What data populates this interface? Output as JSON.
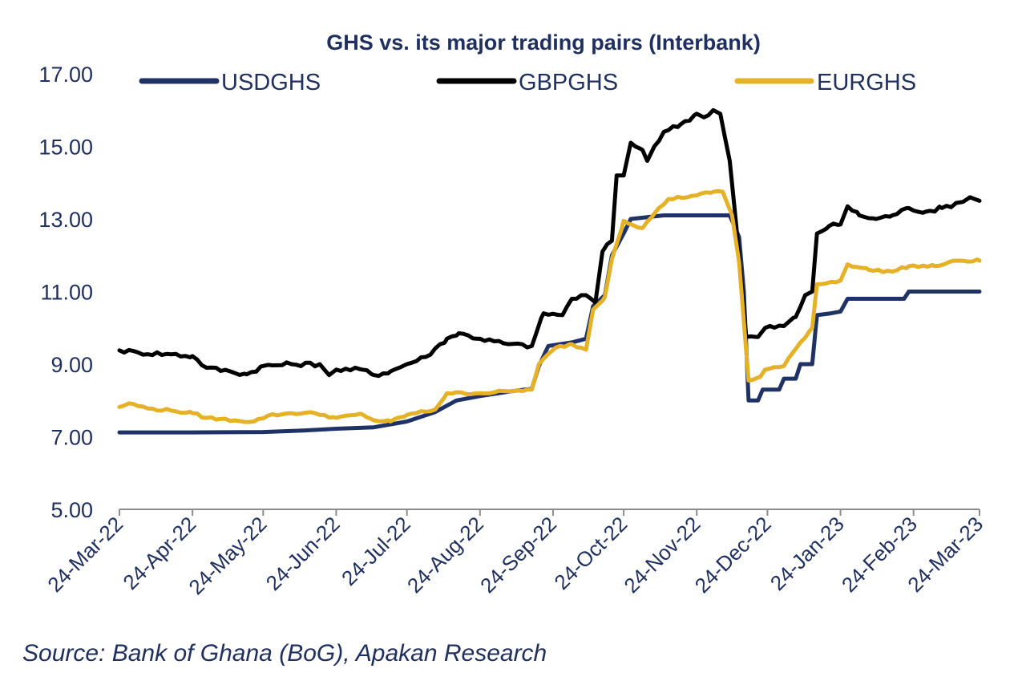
{
  "chart_data": {
    "type": "line",
    "title": "GHS vs. its major trading pairs (Interbank)",
    "xlabel": "",
    "ylabel": "",
    "ylim": [
      5.0,
      17.0
    ],
    "ytick_values": [
      5,
      7,
      9,
      11,
      13,
      15,
      17
    ],
    "ytick_labels": [
      "5.00",
      "7.00",
      "9.00",
      "11.00",
      "13.00",
      "15.00",
      "17.00"
    ],
    "xlim": [
      "2022-03-24",
      "2023-03-24"
    ],
    "xtick_dates": [
      "2022-03-24",
      "2022-04-24",
      "2022-05-24",
      "2022-06-24",
      "2022-07-24",
      "2022-08-24",
      "2022-09-24",
      "2022-10-24",
      "2022-11-24",
      "2022-12-24",
      "2023-01-24",
      "2023-02-24",
      "2023-03-24"
    ],
    "xtick_labels": [
      "24-Mar-22",
      "24-Apr-22",
      "24-May-22",
      "24-Jun-22",
      "24-Jul-22",
      "24-Aug-22",
      "24-Sep-22",
      "24-Oct-22",
      "24-Nov-22",
      "24-Dec-22",
      "24-Jan-23",
      "24-Feb-23",
      "24-Mar-23"
    ],
    "grid": false,
    "legend_position": "top",
    "series": [
      {
        "name": "USDGHS",
        "color": "#1f3266",
        "points": [
          [
            "2022-03-24",
            7.12
          ],
          [
            "2022-04-24",
            7.12
          ],
          [
            "2022-05-24",
            7.13
          ],
          [
            "2022-06-10",
            7.17
          ],
          [
            "2022-06-24",
            7.22
          ],
          [
            "2022-07-10",
            7.26
          ],
          [
            "2022-07-24",
            7.42
          ],
          [
            "2022-08-05",
            7.68
          ],
          [
            "2022-08-14",
            8.0
          ],
          [
            "2022-08-24",
            8.12
          ],
          [
            "2022-09-05",
            8.24
          ],
          [
            "2022-09-12",
            8.3
          ],
          [
            "2022-09-15",
            8.32
          ],
          [
            "2022-09-18",
            8.95
          ],
          [
            "2022-09-22",
            9.5
          ],
          [
            "2022-10-02",
            9.6
          ],
          [
            "2022-10-08",
            9.7
          ],
          [
            "2022-10-11",
            10.6
          ],
          [
            "2022-10-16",
            10.9
          ],
          [
            "2022-10-19",
            12.0
          ],
          [
            "2022-10-24",
            12.6
          ],
          [
            "2022-10-27",
            13.0
          ],
          [
            "2022-11-10",
            13.1
          ],
          [
            "2022-11-24",
            13.1
          ],
          [
            "2022-12-08",
            13.1
          ],
          [
            "2022-12-12",
            12.5
          ],
          [
            "2022-12-14",
            11.0
          ],
          [
            "2022-12-16",
            8.0
          ],
          [
            "2022-12-20",
            8.0
          ],
          [
            "2022-12-22",
            8.3
          ],
          [
            "2022-12-29",
            8.3
          ],
          [
            "2022-12-31",
            8.6
          ],
          [
            "2023-01-05",
            8.6
          ],
          [
            "2023-01-07",
            9.0
          ],
          [
            "2023-01-12",
            9.0
          ],
          [
            "2023-01-14",
            10.35
          ],
          [
            "2023-01-20",
            10.4
          ],
          [
            "2023-01-24",
            10.45
          ],
          [
            "2023-01-27",
            10.8
          ],
          [
            "2023-02-20",
            10.8
          ],
          [
            "2023-02-22",
            11.0
          ],
          [
            "2023-03-24",
            11.0
          ]
        ]
      },
      {
        "name": "GBPGHS",
        "color": "#000000",
        "points": [
          [
            "2022-03-24",
            9.38
          ],
          [
            "2022-04-01",
            9.32
          ],
          [
            "2022-04-15",
            9.27
          ],
          [
            "2022-04-24",
            9.22
          ],
          [
            "2022-04-30",
            8.9
          ],
          [
            "2022-05-10",
            8.8
          ],
          [
            "2022-05-17",
            8.72
          ],
          [
            "2022-05-24",
            8.95
          ],
          [
            "2022-06-05",
            9.0
          ],
          [
            "2022-06-17",
            9.0
          ],
          [
            "2022-06-21",
            8.7
          ],
          [
            "2022-06-24",
            8.85
          ],
          [
            "2022-07-05",
            8.85
          ],
          [
            "2022-07-10",
            8.7
          ],
          [
            "2022-07-17",
            8.8
          ],
          [
            "2022-07-24",
            9.0
          ],
          [
            "2022-08-01",
            9.2
          ],
          [
            "2022-08-10",
            9.7
          ],
          [
            "2022-08-15",
            9.85
          ],
          [
            "2022-08-24",
            9.7
          ],
          [
            "2022-09-05",
            9.55
          ],
          [
            "2022-09-15",
            9.5
          ],
          [
            "2022-09-20",
            10.4
          ],
          [
            "2022-09-28",
            10.35
          ],
          [
            "2022-10-02",
            10.8
          ],
          [
            "2022-10-08",
            10.9
          ],
          [
            "2022-10-12",
            10.7
          ],
          [
            "2022-10-15",
            12.1
          ],
          [
            "2022-10-19",
            12.4
          ],
          [
            "2022-10-21",
            14.2
          ],
          [
            "2022-10-24",
            14.2
          ],
          [
            "2022-10-27",
            15.1
          ],
          [
            "2022-11-01",
            14.9
          ],
          [
            "2022-11-03",
            14.6
          ],
          [
            "2022-11-06",
            15.0
          ],
          [
            "2022-11-10",
            15.4
          ],
          [
            "2022-11-17",
            15.6
          ],
          [
            "2022-11-24",
            15.9
          ],
          [
            "2022-11-27",
            15.8
          ],
          [
            "2022-12-01",
            16.0
          ],
          [
            "2022-12-04",
            15.9
          ],
          [
            "2022-12-08",
            14.6
          ],
          [
            "2022-12-12",
            12.0
          ],
          [
            "2022-12-15",
            9.75
          ],
          [
            "2022-12-20",
            9.75
          ],
          [
            "2022-12-23",
            10.0
          ],
          [
            "2022-12-31",
            10.05
          ],
          [
            "2023-01-05",
            10.3
          ],
          [
            "2023-01-09",
            10.9
          ],
          [
            "2023-01-12",
            11.0
          ],
          [
            "2023-01-14",
            12.6
          ],
          [
            "2023-01-19",
            12.8
          ],
          [
            "2023-01-24",
            12.85
          ],
          [
            "2023-01-27",
            13.35
          ],
          [
            "2023-02-01",
            13.1
          ],
          [
            "2023-02-08",
            13.0
          ],
          [
            "2023-02-15",
            13.1
          ],
          [
            "2023-02-22",
            13.3
          ],
          [
            "2023-03-01",
            13.2
          ],
          [
            "2023-03-08",
            13.3
          ],
          [
            "2023-03-15",
            13.45
          ],
          [
            "2023-03-20",
            13.6
          ],
          [
            "2023-03-24",
            13.5
          ]
        ]
      },
      {
        "name": "EURGHS",
        "color": "#e5b227",
        "points": [
          [
            "2022-03-24",
            7.82
          ],
          [
            "2022-03-28",
            7.92
          ],
          [
            "2022-04-05",
            7.78
          ],
          [
            "2022-04-15",
            7.72
          ],
          [
            "2022-04-24",
            7.65
          ],
          [
            "2022-04-30",
            7.52
          ],
          [
            "2022-05-12",
            7.45
          ],
          [
            "2022-05-20",
            7.42
          ],
          [
            "2022-05-26",
            7.58
          ],
          [
            "2022-06-05",
            7.65
          ],
          [
            "2022-06-15",
            7.65
          ],
          [
            "2022-06-24",
            7.52
          ],
          [
            "2022-07-05",
            7.62
          ],
          [
            "2022-07-10",
            7.45
          ],
          [
            "2022-07-17",
            7.42
          ],
          [
            "2022-07-24",
            7.6
          ],
          [
            "2022-08-05",
            7.75
          ],
          [
            "2022-08-10",
            8.2
          ],
          [
            "2022-08-24",
            8.2
          ],
          [
            "2022-09-05",
            8.25
          ],
          [
            "2022-09-15",
            8.3
          ],
          [
            "2022-09-18",
            9.0
          ],
          [
            "2022-09-25",
            9.45
          ],
          [
            "2022-10-02",
            9.55
          ],
          [
            "2022-10-08",
            9.4
          ],
          [
            "2022-10-11",
            10.5
          ],
          [
            "2022-10-16",
            10.85
          ],
          [
            "2022-10-19",
            11.9
          ],
          [
            "2022-10-24",
            12.95
          ],
          [
            "2022-11-01",
            12.75
          ],
          [
            "2022-11-06",
            13.15
          ],
          [
            "2022-11-12",
            13.55
          ],
          [
            "2022-11-24",
            13.65
          ],
          [
            "2022-12-01",
            13.75
          ],
          [
            "2022-12-05",
            13.75
          ],
          [
            "2022-12-09",
            13.1
          ],
          [
            "2022-12-12",
            11.8
          ],
          [
            "2022-12-16",
            8.55
          ],
          [
            "2022-12-21",
            8.65
          ],
          [
            "2022-12-23",
            8.85
          ],
          [
            "2022-12-31",
            8.95
          ],
          [
            "2023-01-07",
            9.6
          ],
          [
            "2023-01-12",
            10.0
          ],
          [
            "2023-01-14",
            11.2
          ],
          [
            "2023-01-24",
            11.3
          ],
          [
            "2023-01-27",
            11.75
          ],
          [
            "2023-02-05",
            11.6
          ],
          [
            "2023-02-15",
            11.55
          ],
          [
            "2023-02-22",
            11.7
          ],
          [
            "2023-03-05",
            11.7
          ],
          [
            "2023-03-15",
            11.85
          ],
          [
            "2023-03-24",
            11.85
          ]
        ]
      }
    ]
  },
  "source": "Source: Bank of Ghana (BoG), Apakan Research"
}
